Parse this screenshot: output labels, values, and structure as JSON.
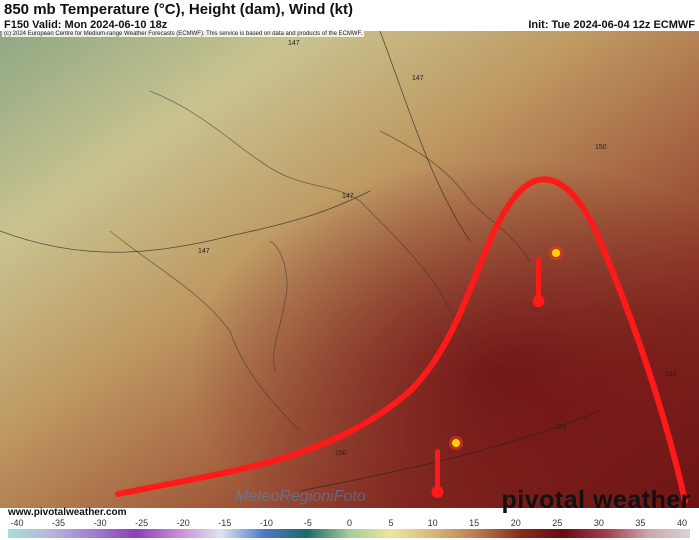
{
  "header": {
    "title": "850 mb Temperature (°C), Height (dam), Wind (kt)",
    "valid": "F150 Valid: Mon 2024-06-10 18z",
    "init": "Init: Tue 2024-06-04 12z ECMWF"
  },
  "copyright": "(c) 2024 European Centre for Medium-range Weather Forecasts (ECMWF). This service is based on data and products of the ECMWF.",
  "contour_labels": [
    "147",
    "147",
    "147",
    "147",
    "150",
    "150",
    "153",
    "153"
  ],
  "watermark": {
    "site": "www.pivotalweather.com",
    "brand": "pivotal weather",
    "logo_text": "MeteoRegioniFoto"
  },
  "colorbar": {
    "ticks": [
      "-40",
      "-35",
      "-30",
      "-25",
      "-20",
      "-15",
      "-10",
      "-5",
      "0",
      "5",
      "10",
      "15",
      "20",
      "25",
      "30",
      "35",
      "40"
    ],
    "colors": [
      "#a8ddd8",
      "#b9b4dc",
      "#9f7fcf",
      "#8a3fb8",
      "#c98bd6",
      "#dfe4ef",
      "#4f78c8",
      "#1a6a6a",
      "#a9c99a",
      "#ece79c",
      "#d8b67b",
      "#b97b4f",
      "#8b2a1c",
      "#6b0a12",
      "#a03a4a",
      "#c9a4aa",
      "#d9d4d4"
    ]
  },
  "annotation_color": "#ff1a1a"
}
